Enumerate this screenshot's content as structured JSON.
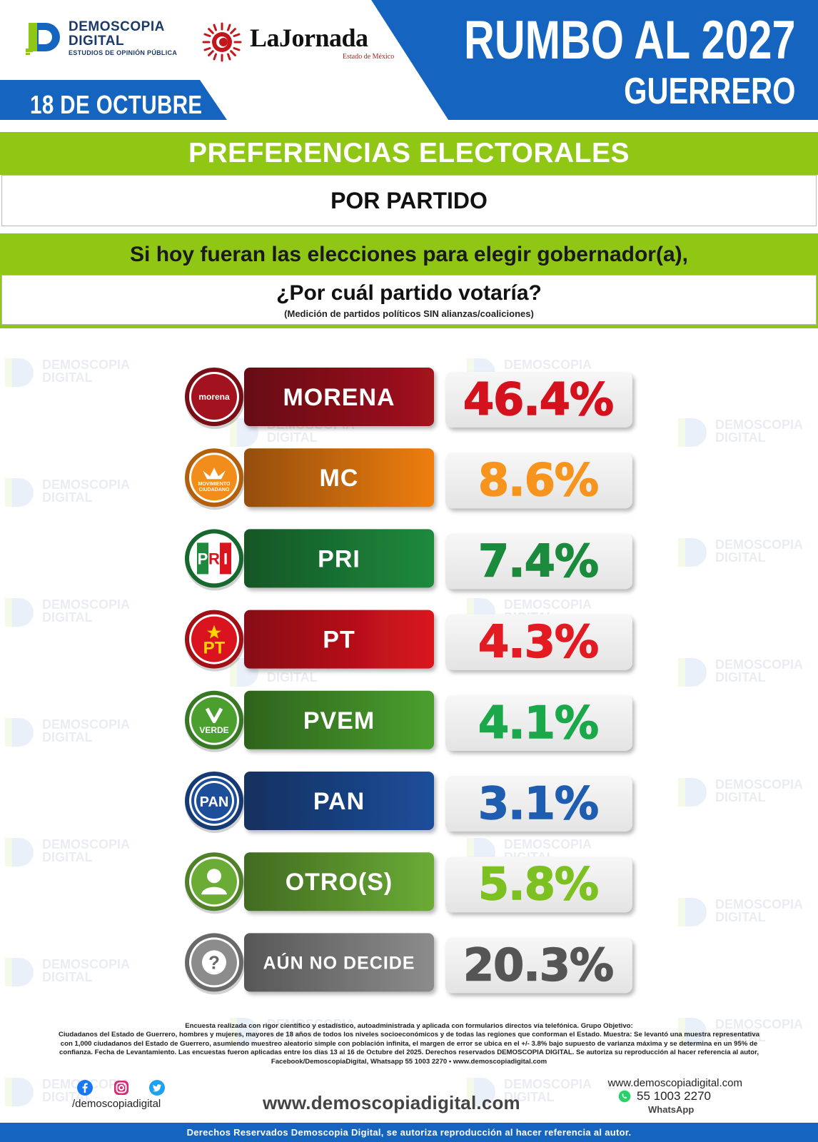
{
  "header": {
    "brand_line1": "DEMOSCOPIA",
    "brand_line2": "DIGITAL",
    "brand_tagline": "ESTUDIOS DE OPINIÓN PÚBLICA",
    "partner_name": "LaJornada",
    "partner_sub": "Estado de México",
    "date": "18 DE OCTUBRE",
    "title": "RUMBO AL 2027",
    "subtitle": "GUERRERO",
    "watermark_line1": "DEMOSCOPIA",
    "watermark_line2": "DIGITAL"
  },
  "banner": {
    "heading": "PREFERENCIAS ELECTORALES",
    "subheading": "POR PARTIDO",
    "question_line1": "Si hoy fueran las elecciones para elegir gobernador(a),",
    "question_line2": "¿Por cuál partido votaría?",
    "note": "(Medición de partidos políticos SIN alianzas/coaliciones)"
  },
  "colors": {
    "header_blue": "#1565c0",
    "band_green": "#8fc714"
  },
  "chart_data": {
    "type": "bar",
    "unit": "%",
    "categories": [
      "MORENA",
      "MC",
      "PRI",
      "PT",
      "PVEM",
      "PAN",
      "OTRO(S)",
      "AÚN NO DECIDE"
    ],
    "values": [
      46.4,
      8.6,
      7.4,
      4.3,
      4.1,
      3.1,
      5.8,
      20.3
    ],
    "value_labels": [
      "46.4%",
      "8.6%",
      "7.4%",
      "4.3%",
      "4.1%",
      "3.1%",
      "5.8%",
      "20.3%"
    ],
    "logo_labels": [
      "morena",
      "MOVIMIENTO CIUDADANO",
      "PRI",
      "PT",
      "VERDE",
      "PAN",
      "",
      "?"
    ],
    "colors": [
      "#a3121f",
      "#ee7e0e",
      "#1f8a3d",
      "#d9141e",
      "#4a9f2e",
      "#1d4e9a",
      "#6aac36",
      "#8c8c8c"
    ],
    "value_colors": [
      "#d4121d",
      "#f7941d",
      "#1a8a3c",
      "#e21b23",
      "#1aa84a",
      "#1f5db0",
      "#7dc021",
      "#555555"
    ]
  },
  "footer": {
    "methodology": [
      "Encuesta realizada con rigor científico y estadístico, autoadministrada y aplicada con formularios directos vía telefónica. Grupo Objetivo:",
      "Ciudadanos del Estado de Guerrero, hombres y mujeres, mayores de 18 años de todos los niveles socioeconómicos y de todas las regiones que conforman el Estado. Muestra: Se levantó una muestra representativa",
      "con 1,000 ciudadanos del Estado de Guerrero, asumiendo muestreo aleatorio simple con población infinita, el margen de error se ubica en el +/- 3.8% bajo supuesto de varianza máxima y se determina en un 95% de",
      "confianza. Fecha de Levantamiento. Las encuestas fueron aplicadas entre los días 13 al 16 de Octubre del 2025. Derechos reservados DEMOSCOPIA DIGITAL. Se autoriza su reproducción al hacer referencia al autor,",
      "Facebook/DemoscopiaDigital, Whatsapp 55 1003 2270 • www.demoscopiadigital.com"
    ],
    "social_handle": "/demoscopiadigital",
    "website_big": "www.demoscopiadigital.com",
    "website_small": "www.demoscopiadigital.com",
    "whatsapp_number": "55 1003 2270",
    "whatsapp_label": "WhatsApp",
    "rights": "Derechos Reservados Demoscopia Digital, se autoriza reproducción al hacer referencia al autor."
  }
}
